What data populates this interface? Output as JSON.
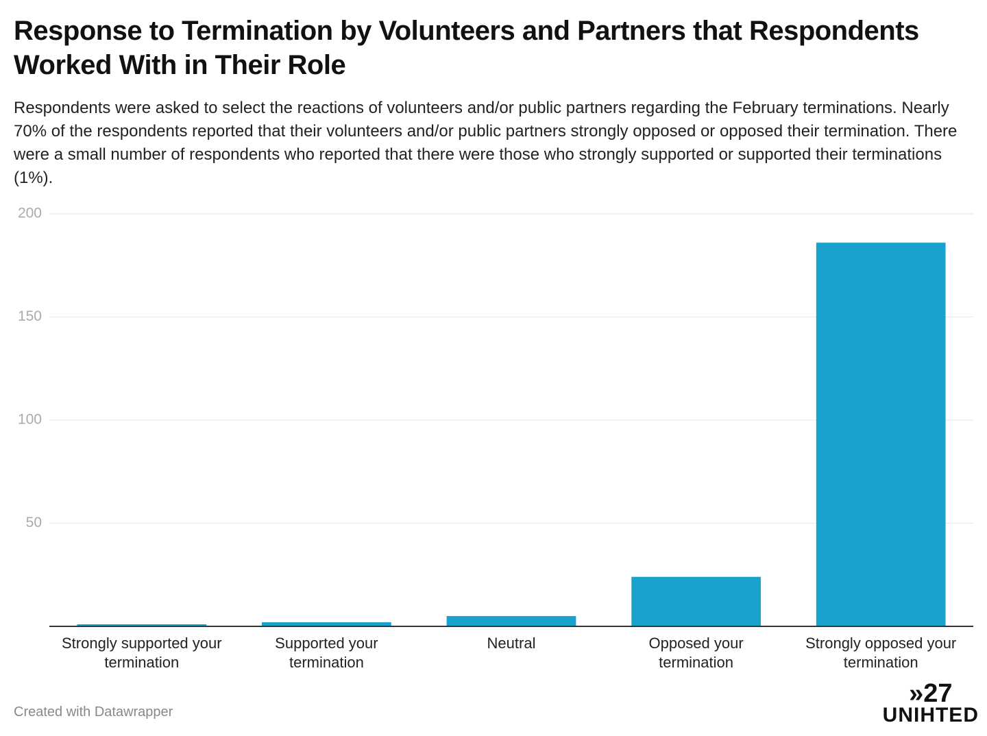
{
  "chart_data": {
    "type": "bar",
    "title": "Response to Termination by Volunteers and Partners that Respondents Worked With in Their Role",
    "subtitle": "Respondents were asked to select the reactions of volunteers and/or public partners regarding the February terminations. Nearly 70% of the respondents reported that their volunteers and/or public partners strongly opposed or opposed their termination. There were a small number of respondents who reported that there were those who strongly supported or supported their terminations (1%).",
    "categories": [
      "Strongly supported your termination",
      "Supported your termination",
      "Neutral",
      "Opposed your termination",
      "Strongly opposed your termination"
    ],
    "values": [
      1,
      2,
      5,
      24,
      186
    ],
    "color": "#1aa2cf",
    "ylim": [
      0,
      200
    ],
    "yticks": [
      50,
      100,
      150,
      200
    ],
    "grid": true,
    "footer": "Created with Datawrapper",
    "logo": {
      "top": "»27",
      "bottom": "UNIHTED"
    }
  }
}
